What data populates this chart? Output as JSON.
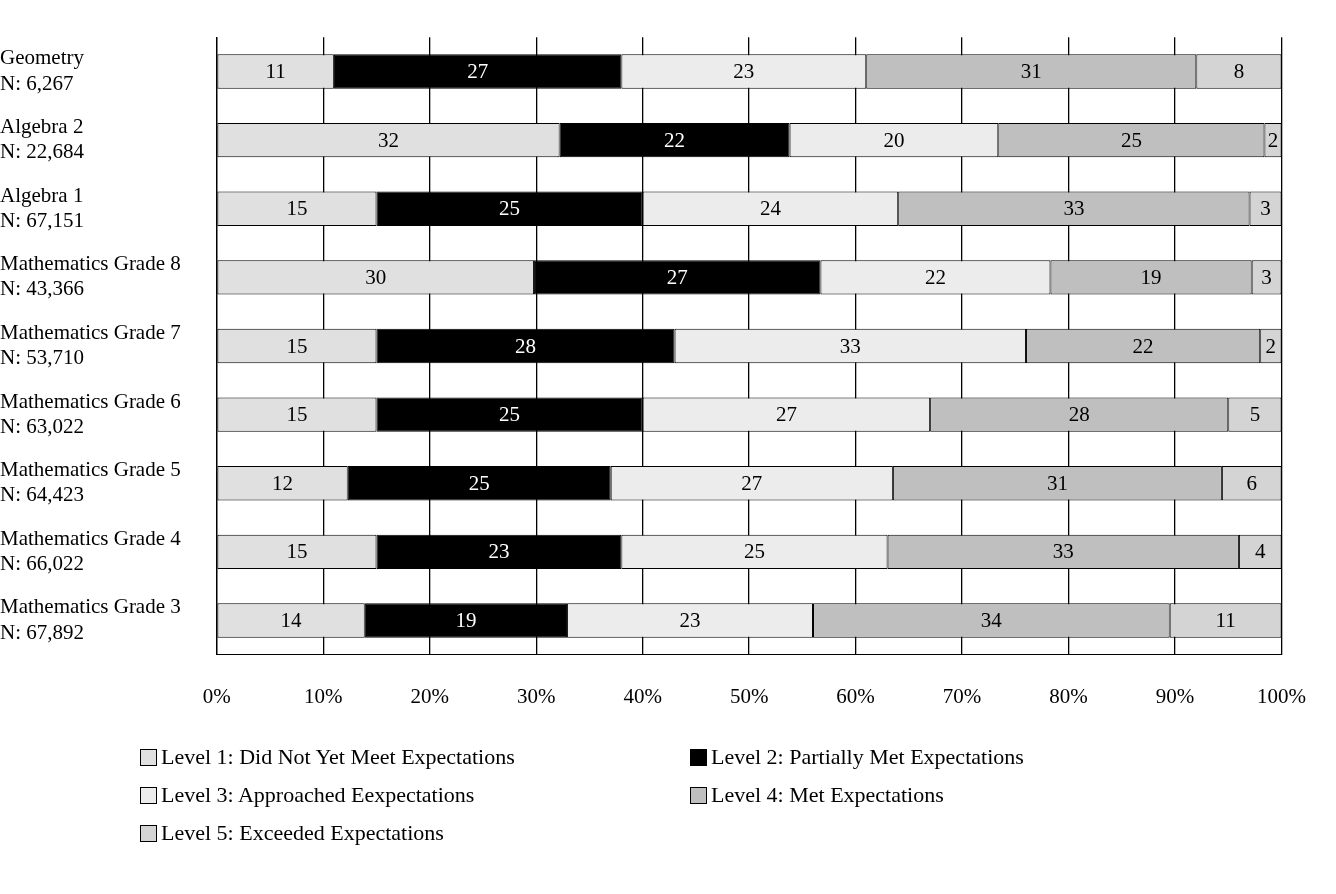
{
  "chart_data": {
    "type": "bar",
    "orientation": "horizontal",
    "stacked": true,
    "categories": [
      "Geometry\nN: 6,267",
      "Algebra 2\nN: 22,684",
      "Algebra 1\nN: 67,151",
      "Mathematics Grade 8\nN: 43,366",
      "Mathematics Grade 7\nN: 53,710",
      "Mathematics Grade 6\nN: 63,022",
      "Mathematics Grade 5\nN: 64,423",
      "Mathematics Grade 4\nN: 66,022",
      "Mathematics Grade 3\nN: 67,892"
    ],
    "series": [
      {
        "name": "Level 1: Did Not Yet Meet Expectations",
        "color": "#e0e0e0",
        "values": [
          11,
          32.2,
          15,
          29.8,
          15,
          15,
          12.3,
          15,
          13.9
        ],
        "value_labels": [
          "11",
          "32",
          "15",
          "30",
          "15",
          "15",
          "12",
          "15",
          "14"
        ]
      },
      {
        "name": "Level 2: Partially Met Expectations",
        "color": "#000000",
        "values": [
          27,
          21.6,
          25,
          26.9,
          28,
          25,
          24.7,
          23,
          19.0
        ],
        "value_labels": [
          "27",
          "22",
          "25",
          "27",
          "28",
          "25",
          "25",
          "23",
          "19"
        ]
      },
      {
        "name": "Level 3: Approached Eexpectations",
        "color": "#ececec",
        "values": [
          23,
          19.6,
          24,
          21.6,
          33,
          27,
          26.5,
          25,
          23.1
        ],
        "value_labels": [
          "23",
          "20",
          "24",
          "22",
          "33",
          "27",
          "27",
          "25",
          "23"
        ]
      },
      {
        "name": "Level 4: Met Expectations",
        "color": "#bfbfbf",
        "values": [
          31,
          25.0,
          33,
          18.9,
          22,
          28,
          30.9,
          33,
          33.5
        ],
        "value_labels": [
          "31",
          "25",
          "33",
          "19",
          "22",
          "28",
          "31",
          "33",
          "34"
        ]
      },
      {
        "name": "Level 5: Exceeded Expectations",
        "color": "#d4d4d4",
        "values": [
          8,
          1.6,
          3,
          2.8,
          2,
          5,
          5.6,
          4,
          10.5
        ],
        "value_labels": [
          "8",
          "2",
          "3",
          "3",
          "2",
          "5",
          "6",
          "4",
          "11"
        ]
      }
    ],
    "xlim": [
      0,
      100
    ],
    "xticks": [
      {
        "value": 0,
        "label": "0%"
      },
      {
        "value": 10,
        "label": "10%"
      },
      {
        "value": 20,
        "label": "20%"
      },
      {
        "value": 30,
        "label": "30%"
      },
      {
        "value": 40,
        "label": "40%"
      },
      {
        "value": 50,
        "label": "50%"
      },
      {
        "value": 60,
        "label": "60%"
      },
      {
        "value": 70,
        "label": "70%"
      },
      {
        "value": 80,
        "label": "80%"
      },
      {
        "value": 90,
        "label": "90%"
      },
      {
        "value": 100,
        "label": "100%"
      }
    ],
    "grid": "x",
    "legend": "bottom"
  }
}
